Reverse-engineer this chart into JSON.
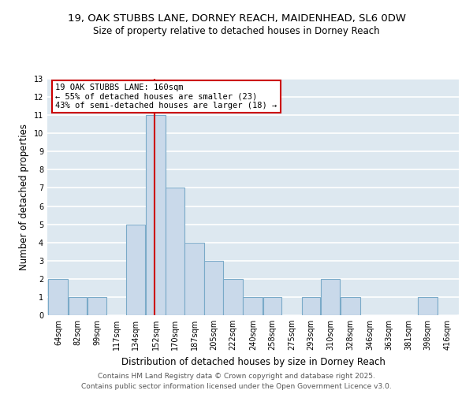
{
  "title1": "19, OAK STUBBS LANE, DORNEY REACH, MAIDENHEAD, SL6 0DW",
  "title2": "Size of property relative to detached houses in Dorney Reach",
  "xlabel": "Distribution of detached houses by size in Dorney Reach",
  "ylabel": "Number of detached properties",
  "bins": [
    64,
    82,
    99,
    117,
    134,
    152,
    170,
    187,
    205,
    222,
    240,
    258,
    275,
    293,
    310,
    328,
    346,
    363,
    381,
    398,
    416
  ],
  "bin_labels": [
    "64sqm",
    "82sqm",
    "99sqm",
    "117sqm",
    "134sqm",
    "152sqm",
    "170sqm",
    "187sqm",
    "205sqm",
    "222sqm",
    "240sqm",
    "258sqm",
    "275sqm",
    "293sqm",
    "310sqm",
    "328sqm",
    "346sqm",
    "363sqm",
    "381sqm",
    "398sqm",
    "416sqm"
  ],
  "values": [
    2,
    1,
    1,
    0,
    5,
    11,
    7,
    4,
    3,
    2,
    1,
    1,
    0,
    1,
    2,
    1,
    0,
    0,
    0,
    1,
    0
  ],
  "bar_color": "#c9d9ea",
  "bar_edge_color": "#7aaac8",
  "vline_x": 160,
  "vline_color": "#cc0000",
  "annotation_text": "19 OAK STUBBS LANE: 160sqm\n← 55% of detached houses are smaller (23)\n43% of semi-detached houses are larger (18) →",
  "annotation_box_edge_color": "#cc0000",
  "ylim": [
    0,
    13
  ],
  "yticks": [
    0,
    1,
    2,
    3,
    4,
    5,
    6,
    7,
    8,
    9,
    10,
    11,
    12,
    13
  ],
  "bg_color": "#dde8f0",
  "grid_color": "#ffffff",
  "footer": "Contains HM Land Registry data © Crown copyright and database right 2025.\nContains public sector information licensed under the Open Government Licence v3.0.",
  "title1_fontsize": 9.5,
  "title2_fontsize": 8.5,
  "xlabel_fontsize": 8.5,
  "ylabel_fontsize": 8.5,
  "tick_fontsize": 7,
  "annotation_fontsize": 7.5,
  "footer_fontsize": 6.5,
  "footer_color": "#555555"
}
